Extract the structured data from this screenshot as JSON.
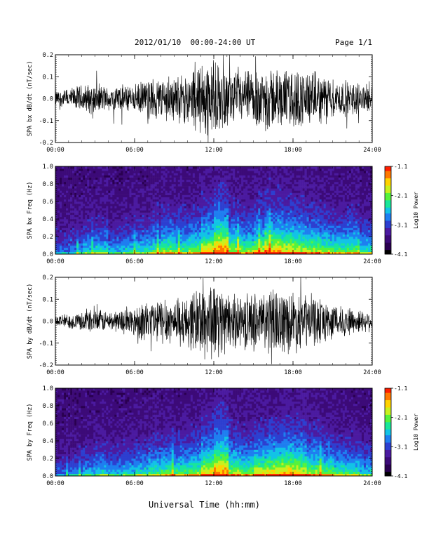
{
  "header": {
    "title": "2012/01/10  00:00-24:00 UT",
    "page": "Page 1/1"
  },
  "footer": {
    "xlabel": "Universal Time (hh:mm)"
  },
  "colors": {
    "waveform": "#000000",
    "colormap": [
      "#000000",
      "#2a0050",
      "#3c0a78",
      "#4b1aa0",
      "#2d3fd0",
      "#1e7ef0",
      "#12c3e6",
      "#19e69a",
      "#55f23c",
      "#c8f01e",
      "#ffd200",
      "#ff7800",
      "#ff1e00"
    ]
  },
  "chart_data": [
    {
      "type": "line",
      "ylabel": "SPA bx dB/dt (nT/sec)",
      "xlim": [
        0,
        24
      ],
      "ylim": [
        -0.2,
        0.2
      ],
      "x_ticks": [
        "00:00",
        "06:00",
        "12:00",
        "18:00",
        "24:00"
      ],
      "y_ticks": [
        "-0.2",
        "-0.1",
        "0.0",
        "0.1",
        "0.2"
      ],
      "series": [
        {
          "x": [
            0,
            1,
            2,
            3,
            4,
            5,
            6,
            7,
            8,
            9,
            10,
            11,
            11.5,
            12,
            12.5,
            13,
            14,
            15,
            16,
            17,
            18,
            19,
            20,
            21,
            22,
            23,
            24
          ],
          "amplitude": [
            0.04,
            0.05,
            0.07,
            0.08,
            0.06,
            0.07,
            0.07,
            0.1,
            0.12,
            0.11,
            0.13,
            0.2,
            0.22,
            0.2,
            0.16,
            0.14,
            0.13,
            0.15,
            0.17,
            0.15,
            0.16,
            0.14,
            0.13,
            0.1,
            0.09,
            0.08,
            0.06
          ]
        }
      ]
    },
    {
      "type": "heatmap",
      "ylabel": "SPA bx Freq (Hz)",
      "colorbar_label": "Log10 Power",
      "xlim": [
        0,
        24
      ],
      "ylim": [
        0.0,
        1.0
      ],
      "x_ticks": [
        "00:00",
        "06:00",
        "12:00",
        "18:00",
        "24:00"
      ],
      "y_ticks": [
        "0.0",
        "0.2",
        "0.4",
        "0.6",
        "0.8",
        "1.0"
      ],
      "color_range": [
        -4.1,
        -1.1
      ],
      "colorbar_ticks": [
        "-1.1",
        "-2.1",
        "-3.1",
        "-4.1"
      ],
      "activity_by_hour": [
        0.35,
        0.4,
        0.5,
        0.55,
        0.45,
        0.5,
        0.55,
        0.6,
        0.7,
        0.65,
        0.7,
        0.85,
        1.0,
        0.75,
        0.7,
        0.8,
        0.9,
        0.85,
        0.8,
        0.75,
        0.7,
        0.65,
        0.7,
        0.55,
        0.45
      ]
    },
    {
      "type": "line",
      "ylabel": "SPA by dB/dt (nT/sec)",
      "xlim": [
        0,
        24
      ],
      "ylim": [
        -0.2,
        0.2
      ],
      "x_ticks": [
        "00:00",
        "06:00",
        "12:00",
        "18:00",
        "24:00"
      ],
      "y_ticks": [
        "-0.2",
        "-0.1",
        "0.0",
        "0.1",
        "0.2"
      ],
      "series": [
        {
          "x": [
            0,
            1,
            2,
            3,
            4,
            5,
            6,
            7,
            8,
            9,
            10,
            11,
            11.5,
            12,
            12.5,
            13,
            14,
            15,
            16,
            17,
            18,
            19,
            20,
            21,
            22,
            23,
            24
          ],
          "amplitude": [
            0.03,
            0.04,
            0.05,
            0.06,
            0.05,
            0.06,
            0.08,
            0.11,
            0.12,
            0.11,
            0.13,
            0.19,
            0.22,
            0.2,
            0.15,
            0.14,
            0.13,
            0.15,
            0.17,
            0.16,
            0.16,
            0.14,
            0.12,
            0.09,
            0.08,
            0.06,
            0.05
          ]
        }
      ]
    },
    {
      "type": "heatmap",
      "ylabel": "SPA by Freq (Hz)",
      "colorbar_label": "Log10 Power",
      "xlim": [
        0,
        24
      ],
      "ylim": [
        0.0,
        1.0
      ],
      "x_ticks": [
        "00:00",
        "06:00",
        "12:00",
        "18:00",
        "24:00"
      ],
      "y_ticks": [
        "0.0",
        "0.2",
        "0.4",
        "0.6",
        "0.8",
        "1.0"
      ],
      "color_range": [
        -4.1,
        -1.1
      ],
      "colorbar_ticks": [
        "-1.1",
        "-2.1",
        "-3.1",
        "-4.1"
      ],
      "activity_by_hour": [
        0.3,
        0.35,
        0.45,
        0.5,
        0.45,
        0.5,
        0.55,
        0.6,
        0.65,
        0.65,
        0.7,
        0.85,
        1.0,
        0.75,
        0.7,
        0.8,
        0.85,
        0.9,
        0.85,
        0.75,
        0.7,
        0.6,
        0.6,
        0.5,
        0.4
      ]
    }
  ]
}
